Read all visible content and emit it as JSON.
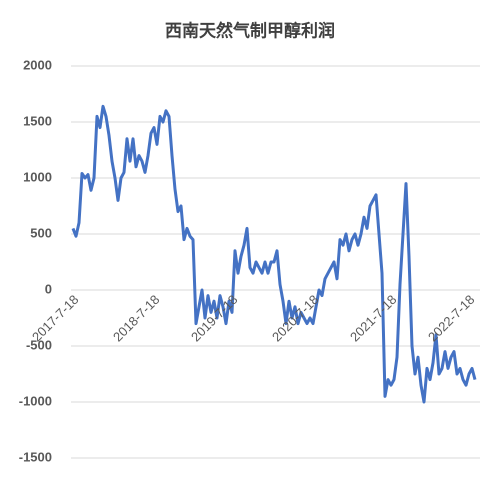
{
  "chart_data": {
    "type": "line",
    "title": "西南天然气制甲醇利润",
    "categories": [
      "2017-7-18",
      null,
      null,
      null,
      null,
      null,
      null,
      null,
      null,
      null,
      null,
      null,
      null,
      null,
      null,
      null,
      null,
      null,
      null,
      null,
      null,
      null,
      null,
      null,
      null,
      null,
      null,
      "2018-7-18",
      null,
      null,
      null,
      null,
      null,
      null,
      null,
      null,
      null,
      null,
      null,
      null,
      null,
      null,
      null,
      null,
      null,
      null,
      null,
      null,
      null,
      null,
      null,
      null,
      null,
      "2019-7-18",
      null,
      null,
      null,
      null,
      null,
      null,
      null,
      null,
      null,
      null,
      null,
      null,
      null,
      null,
      null,
      null,
      null,
      null,
      null,
      null,
      null,
      null,
      null,
      null,
      null,
      null,
      "2020-7-18",
      null,
      null,
      null,
      null,
      null,
      null,
      null,
      null,
      null,
      null,
      null,
      null,
      null,
      null,
      null,
      null,
      null,
      null,
      null,
      null,
      null,
      null,
      null,
      null,
      null,
      "2021-7-18",
      null,
      null,
      null,
      null,
      null,
      null,
      null,
      null,
      null,
      null,
      null,
      null,
      null,
      null,
      null,
      null,
      null,
      null,
      null,
      null,
      null,
      null,
      null,
      null,
      null,
      "2022-7-18",
      null,
      null
    ],
    "values": [
      550,
      480,
      600,
      1040,
      1000,
      1030,
      890,
      1000,
      1550,
      1450,
      1640,
      1550,
      1380,
      1150,
      1000,
      800,
      1000,
      1050,
      1350,
      1150,
      1350,
      1100,
      1200,
      1150,
      1050,
      1200,
      1400,
      1450,
      1300,
      1550,
      1500,
      1600,
      1550,
      1200,
      900,
      700,
      750,
      450,
      550,
      480,
      450,
      -300,
      -150,
      0,
      -250,
      -50,
      -200,
      -100,
      -250,
      -50,
      -150,
      -300,
      -100,
      -200,
      350,
      150,
      300,
      400,
      550,
      200,
      150,
      250,
      200,
      150,
      250,
      150,
      250,
      250,
      350,
      50,
      -100,
      -300,
      -100,
      -250,
      -150,
      -300,
      -200,
      -250,
      -300,
      -250,
      -300,
      -150,
      0,
      -50,
      100,
      150,
      200,
      250,
      100,
      450,
      400,
      500,
      350,
      450,
      500,
      400,
      500,
      650,
      550,
      750,
      800,
      850,
      500,
      150,
      -950,
      -800,
      -850,
      -800,
      -600,
      50,
      500,
      950,
      300,
      -500,
      -750,
      -600,
      -850,
      -1000,
      -700,
      -800,
      -650,
      -400,
      -750,
      -700,
      -550,
      -700,
      -600,
      -550,
      -750,
      -700,
      -800,
      -850,
      -750,
      -700,
      -800
    ],
    "color": "#4472c4",
    "ylim": [
      -1500,
      2000
    ],
    "yticks": [
      -1500,
      -1000,
      -500,
      0,
      500,
      1000,
      1500,
      2000
    ],
    "grid": true
  }
}
